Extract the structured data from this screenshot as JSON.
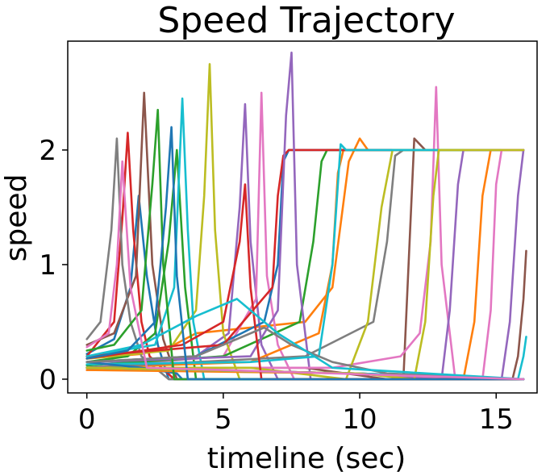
{
  "chart_data": {
    "type": "line",
    "title": "Speed Trajectory",
    "xlabel": "timeline (sec)",
    "ylabel": "speed",
    "xlim": [
      -0.7,
      16.5
    ],
    "ylim": [
      -0.12,
      2.95
    ],
    "xticks": [
      0,
      5,
      10,
      15
    ],
    "yticks": [
      0,
      1,
      2
    ],
    "grid": false,
    "legend": "none",
    "note": "Approximately 100 overlapping speed trajectories, most rise from ~0.1-0.4 to a spike and then settle near 2.0 or drop to 0; representative series sampled below.",
    "series": [
      {
        "color": "#1f77b4",
        "x": [
          0,
          1.0,
          1.6,
          1.9,
          2.2,
          2.6,
          3.0,
          16.0
        ],
        "y": [
          0.22,
          0.35,
          0.8,
          1.6,
          0.9,
          0.3,
          0.0,
          0.0
        ]
      },
      {
        "color": "#ff7f0e",
        "x": [
          0,
          2.0,
          3.2,
          4.0,
          8.0,
          9.0,
          9.6,
          10.0,
          10.3,
          16.0
        ],
        "y": [
          0.18,
          0.22,
          0.3,
          0.4,
          0.5,
          0.8,
          1.9,
          2.1,
          2.0,
          2.0
        ]
      },
      {
        "color": "#2ca02c",
        "x": [
          0,
          1.5,
          2.5,
          3.0,
          3.3,
          3.6,
          4.0,
          16.0
        ],
        "y": [
          0.15,
          0.2,
          0.4,
          1.2,
          2.0,
          0.8,
          0.0,
          0.0
        ]
      },
      {
        "color": "#d62728",
        "x": [
          0,
          1.0,
          1.3,
          1.5,
          1.7,
          2.0,
          2.3,
          3.2,
          16.0
        ],
        "y": [
          0.2,
          0.5,
          1.4,
          2.15,
          1.3,
          0.5,
          0.2,
          0.0,
          0.0
        ]
      },
      {
        "color": "#9467bd",
        "x": [
          0,
          4.0,
          5.2,
          5.6,
          5.8,
          6.0,
          6.4,
          7.0,
          16.0
        ],
        "y": [
          0.12,
          0.2,
          0.4,
          1.5,
          2.4,
          1.2,
          0.3,
          0.0,
          0.0
        ]
      },
      {
        "color": "#8c564b",
        "x": [
          0,
          1.0,
          1.8,
          2.1,
          2.4,
          2.8,
          3.3,
          16.0
        ],
        "y": [
          0.3,
          0.4,
          0.9,
          2.5,
          1.0,
          0.35,
          0.0,
          0.0
        ]
      },
      {
        "color": "#e377c2",
        "x": [
          0,
          5.0,
          6.2,
          6.4,
          6.6,
          7.0,
          7.6,
          16.0
        ],
        "y": [
          0.1,
          0.2,
          0.7,
          2.5,
          0.9,
          0.3,
          0.0,
          0.0
        ]
      },
      {
        "color": "#7f7f7f",
        "x": [
          0,
          0.5,
          0.9,
          1.1,
          1.3,
          1.6,
          2.0,
          3.0,
          16.0
        ],
        "y": [
          0.35,
          0.5,
          1.3,
          2.1,
          1.0,
          0.5,
          0.2,
          0.0,
          0.0
        ]
      },
      {
        "color": "#bcbd22",
        "x": [
          0,
          3.0,
          4.0,
          4.3,
          4.5,
          4.7,
          5.0,
          5.6,
          16.0
        ],
        "y": [
          0.18,
          0.25,
          0.6,
          1.6,
          2.75,
          1.3,
          0.4,
          0.0,
          0.0
        ]
      },
      {
        "color": "#17becf",
        "x": [
          0,
          2.5,
          3.2,
          3.5,
          3.7,
          3.9,
          4.3,
          16.0
        ],
        "y": [
          0.2,
          0.3,
          0.8,
          2.45,
          1.3,
          0.5,
          0.0,
          0.0
        ]
      },
      {
        "color": "#1f77b4",
        "x": [
          0,
          4.0,
          6.5,
          7.0,
          7.2,
          7.4,
          7.6,
          16.0
        ],
        "y": [
          0.15,
          0.2,
          0.5,
          1.0,
          1.9,
          2.0,
          2.0,
          2.0
        ]
      },
      {
        "color": "#ff7f0e",
        "x": [
          0,
          6.0,
          8.5,
          9.0,
          9.2,
          9.4,
          9.6,
          16.0
        ],
        "y": [
          0.1,
          0.15,
          0.4,
          1.0,
          1.8,
          2.0,
          2.0,
          2.0
        ]
      },
      {
        "color": "#2ca02c",
        "x": [
          0,
          5.0,
          7.8,
          8.3,
          8.6,
          8.8,
          9.0,
          16.0
        ],
        "y": [
          0.12,
          0.2,
          0.5,
          1.2,
          1.9,
          2.0,
          2.0,
          2.0
        ]
      },
      {
        "color": "#d62728",
        "x": [
          0,
          5.0,
          6.8,
          7.0,
          7.2,
          7.4,
          16.0
        ],
        "y": [
          0.2,
          0.3,
          0.8,
          1.6,
          1.95,
          2.0,
          2.0
        ]
      },
      {
        "color": "#9467bd",
        "x": [
          0,
          6.0,
          7.0,
          7.3,
          7.5,
          7.7,
          8.2,
          16.0
        ],
        "y": [
          0.15,
          0.2,
          0.6,
          2.3,
          2.85,
          1.0,
          0.0,
          0.0
        ]
      },
      {
        "color": "#8c564b",
        "x": [
          0,
          8.0,
          11.0,
          11.6,
          12.0,
          12.4,
          16.0
        ],
        "y": [
          0.1,
          0.1,
          0.0,
          0.0,
          2.1,
          2.0,
          2.0
        ]
      },
      {
        "color": "#e377c2",
        "x": [
          0,
          5.0,
          9.0,
          11.5,
          12.2,
          12.6,
          12.8,
          13.0,
          13.5,
          16.0
        ],
        "y": [
          0.08,
          0.1,
          0.1,
          0.2,
          0.4,
          1.2,
          2.55,
          1.0,
          0.0,
          0.0
        ]
      },
      {
        "color": "#7f7f7f",
        "x": [
          0,
          8.0,
          10.5,
          11.0,
          11.3,
          11.6,
          16.0
        ],
        "y": [
          0.1,
          0.2,
          0.5,
          1.2,
          1.95,
          2.0,
          2.0
        ]
      },
      {
        "color": "#bcbd22",
        "x": [
          0,
          6.0,
          9.5,
          10.3,
          10.8,
          11.2,
          16.0
        ],
        "y": [
          0.1,
          0.1,
          0.0,
          0.5,
          1.5,
          2.0,
          2.0
        ]
      },
      {
        "color": "#17becf",
        "x": [
          0,
          6.0,
          8.5,
          9.0,
          9.3,
          9.5,
          16.0
        ],
        "y": [
          0.13,
          0.15,
          0.2,
          1.0,
          2.05,
          2.0,
          2.0
        ]
      },
      {
        "color": "#1f77b4",
        "x": [
          0,
          2.0,
          3.3,
          3.5,
          16.0
        ],
        "y": [
          0.15,
          0.1,
          0.05,
          0.0,
          0.0
        ]
      },
      {
        "color": "#ff7f0e",
        "x": [
          0,
          10.0,
          13.8,
          14.2,
          14.5,
          14.8,
          16.0
        ],
        "y": [
          0.08,
          0.05,
          0.0,
          0.5,
          1.6,
          2.0,
          2.0
        ]
      },
      {
        "color": "#9467bd",
        "x": [
          0,
          10.0,
          13.0,
          13.3,
          13.6,
          13.8,
          16.0
        ],
        "y": [
          0.1,
          0.05,
          0.0,
          0.6,
          1.7,
          2.0,
          2.0
        ]
      },
      {
        "color": "#e377c2",
        "x": [
          0,
          10.0,
          14.5,
          14.8,
          15.0,
          15.2,
          16.0
        ],
        "y": [
          0.1,
          0.05,
          0.0,
          0.6,
          1.7,
          2.0,
          2.0
        ]
      },
      {
        "color": "#9467bd",
        "x": [
          0,
          10.0,
          15.2,
          15.5,
          15.8,
          16.0
        ],
        "y": [
          0.1,
          0.05,
          0.0,
          0.5,
          1.6,
          2.0
        ]
      },
      {
        "color": "#8c564b",
        "x": [
          0,
          10.0,
          15.6,
          15.8,
          16.0,
          16.1
        ],
        "y": [
          0.1,
          0.05,
          0.0,
          0.2,
          0.7,
          1.12
        ]
      },
      {
        "color": "#17becf",
        "x": [
          0,
          10.0,
          15.8,
          16.0,
          16.1
        ],
        "y": [
          0.1,
          0.05,
          0.0,
          0.2,
          0.37
        ]
      },
      {
        "color": "#bcbd22",
        "x": [
          0,
          10.0,
          12.0,
          12.4,
          12.7,
          12.9,
          16.0
        ],
        "y": [
          0.1,
          0.05,
          0.0,
          0.5,
          1.6,
          2.0,
          2.0
        ]
      },
      {
        "color": "#2ca02c",
        "x": [
          0,
          1.0,
          2.0,
          2.4,
          2.6,
          2.8,
          3.2,
          16.0
        ],
        "y": [
          0.25,
          0.3,
          0.6,
          1.7,
          2.35,
          1.0,
          0.0,
          0.0
        ]
      },
      {
        "color": "#d62728",
        "x": [
          0,
          3.5,
          5.0,
          5.6,
          5.8,
          6.0,
          6.4,
          16.0
        ],
        "y": [
          0.18,
          0.3,
          0.5,
          1.2,
          1.7,
          0.8,
          0.0,
          0.0
        ]
      },
      {
        "color": "#7f7f7f",
        "x": [
          0,
          4.0,
          6.5,
          7.5,
          9.0,
          11.0,
          16.0
        ],
        "y": [
          0.15,
          0.2,
          0.45,
          0.3,
          0.15,
          0.05,
          0.0
        ]
      },
      {
        "color": "#17becf",
        "x": [
          0,
          2.0,
          4.0,
          5.5,
          7.0,
          9.0,
          16.0
        ],
        "y": [
          0.2,
          0.3,
          0.55,
          0.7,
          0.4,
          0.1,
          0.0
        ]
      },
      {
        "color": "#1f77b4",
        "x": [
          0,
          1.5,
          2.5,
          2.9,
          3.1,
          3.3,
          3.7,
          16.0
        ],
        "y": [
          0.18,
          0.25,
          0.5,
          1.5,
          2.2,
          0.9,
          0.0,
          0.0
        ]
      },
      {
        "color": "#e377c2",
        "x": [
          0,
          0.8,
          1.1,
          1.3,
          1.6,
          2.2,
          16.0
        ],
        "y": [
          0.28,
          0.4,
          1.0,
          1.9,
          0.8,
          0.1,
          0.0
        ]
      }
    ]
  }
}
